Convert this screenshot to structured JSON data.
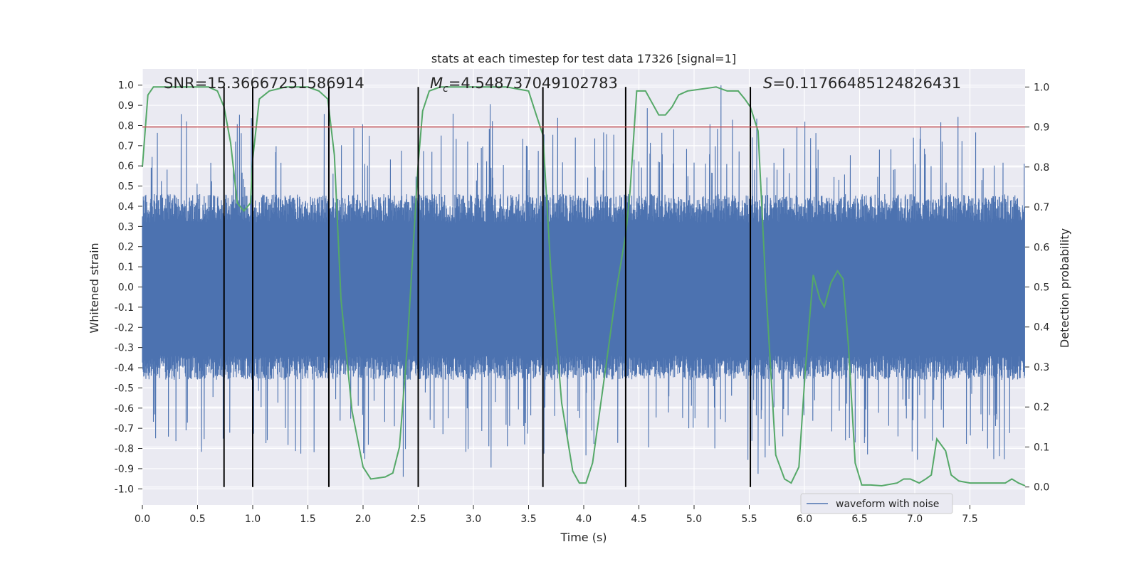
{
  "chart_data": {
    "type": "line",
    "title": "stats at each timestep for test data 17326 [signal=1]",
    "xlabel": "Time (s)",
    "ylabel": "Whitened strain",
    "y2label": "Detection probability",
    "xlim": [
      0,
      8
    ],
    "ylim": [
      -1.08,
      1.08
    ],
    "y2lim": [
      -0.045,
      1.045
    ],
    "xticks": [
      "0.0",
      "0.5",
      "1.0",
      "1.5",
      "2.0",
      "2.5",
      "3.0",
      "3.5",
      "4.0",
      "4.5",
      "5.0",
      "5.5",
      "6.0",
      "6.5",
      "7.0",
      "7.5"
    ],
    "yticks": [
      "1.0",
      "0.9",
      "0.8",
      "0.7",
      "0.6",
      "0.5",
      "0.4",
      "0.3",
      "0.2",
      "0.1",
      "0.0",
      "-0.1",
      "-0.2",
      "-0.3",
      "-0.4",
      "-0.5",
      "-0.6",
      "-0.7",
      "-0.8",
      "-0.9",
      "-1.0"
    ],
    "y2ticks": [
      "1.0",
      "0.9",
      "0.8",
      "0.7",
      "0.6",
      "0.5",
      "0.4",
      "0.3",
      "0.2",
      "0.1",
      "0.0"
    ],
    "annotations": {
      "snr": "SNR=15.36667251586914",
      "mc_symbol": "M",
      "mc_sub": "c",
      "mc_value": "=4.548737049102783",
      "s_symbol": "S",
      "s_value": "=0.11766485124826431"
    },
    "legend": {
      "label": "waveform with noise",
      "placement": "lower-right"
    },
    "threshold": {
      "value": 0.9,
      "axis": "right",
      "color": "#c44e52"
    },
    "vertical_lines": [
      0.74,
      1.0,
      1.69,
      2.5,
      3.63,
      4.38,
      5.51
    ],
    "vlines_ymin": 0.0,
    "vlines_ymax": 1.0,
    "waveform": {
      "name": "waveform with noise",
      "color": "#4c72b0",
      "n_samples": 2000,
      "typical_envelope": 0.4,
      "peak_max": 1.0,
      "peak_min": -0.95
    },
    "series": [
      {
        "name": "detection probability",
        "color": "#55a868",
        "x": [
          0.0,
          0.05,
          0.1,
          0.2,
          0.4,
          0.6,
          0.68,
          0.74,
          0.8,
          0.86,
          0.92,
          0.98,
          1.0,
          1.06,
          1.15,
          1.3,
          1.5,
          1.6,
          1.68,
          1.74,
          1.8,
          1.9,
          2.0,
          2.07,
          2.2,
          2.27,
          2.33,
          2.4,
          2.5,
          2.54,
          2.6,
          2.7,
          2.9,
          3.1,
          3.3,
          3.5,
          3.57,
          3.63,
          3.7,
          3.8,
          3.9,
          3.96,
          4.02,
          4.08,
          4.2,
          4.3,
          4.38,
          4.42,
          4.48,
          4.56,
          4.62,
          4.68,
          4.74,
          4.8,
          4.86,
          4.94,
          5.2,
          5.3,
          5.4,
          5.46,
          5.51,
          5.58,
          5.65,
          5.74,
          5.82,
          5.88,
          5.95,
          6.01,
          6.08,
          6.14,
          6.18,
          6.24,
          6.3,
          6.35,
          6.4,
          6.46,
          6.52,
          6.6,
          6.7,
          6.84,
          6.9,
          6.96,
          7.04,
          7.1,
          7.15,
          7.2,
          7.28,
          7.33,
          7.4,
          7.5,
          7.82,
          7.88,
          7.94,
          8.0
        ],
        "y": [
          0.8,
          0.98,
          1.0,
          1.0,
          1.0,
          1.0,
          0.99,
          0.95,
          0.86,
          0.71,
          0.69,
          0.71,
          0.82,
          0.97,
          0.99,
          1.0,
          1.0,
          0.99,
          0.97,
          0.83,
          0.47,
          0.19,
          0.05,
          0.02,
          0.025,
          0.035,
          0.1,
          0.35,
          0.81,
          0.94,
          0.99,
          1.0,
          1.0,
          1.0,
          1.0,
          0.99,
          0.93,
          0.88,
          0.55,
          0.21,
          0.04,
          0.01,
          0.01,
          0.06,
          0.3,
          0.5,
          0.63,
          0.74,
          0.99,
          0.99,
          0.96,
          0.93,
          0.93,
          0.95,
          0.98,
          0.99,
          1.0,
          0.99,
          0.99,
          0.97,
          0.95,
          0.89,
          0.5,
          0.08,
          0.02,
          0.01,
          0.05,
          0.3,
          0.53,
          0.47,
          0.45,
          0.51,
          0.54,
          0.52,
          0.35,
          0.06,
          0.005,
          0.005,
          0.003,
          0.01,
          0.02,
          0.02,
          0.01,
          0.02,
          0.03,
          0.12,
          0.09,
          0.03,
          0.015,
          0.01,
          0.01,
          0.02,
          0.01,
          0.003
        ]
      }
    ],
    "grid": true,
    "colors": {
      "plot_bg": "#eaeaf2",
      "grid": "#ffffff",
      "axis_text": "#262626"
    }
  }
}
